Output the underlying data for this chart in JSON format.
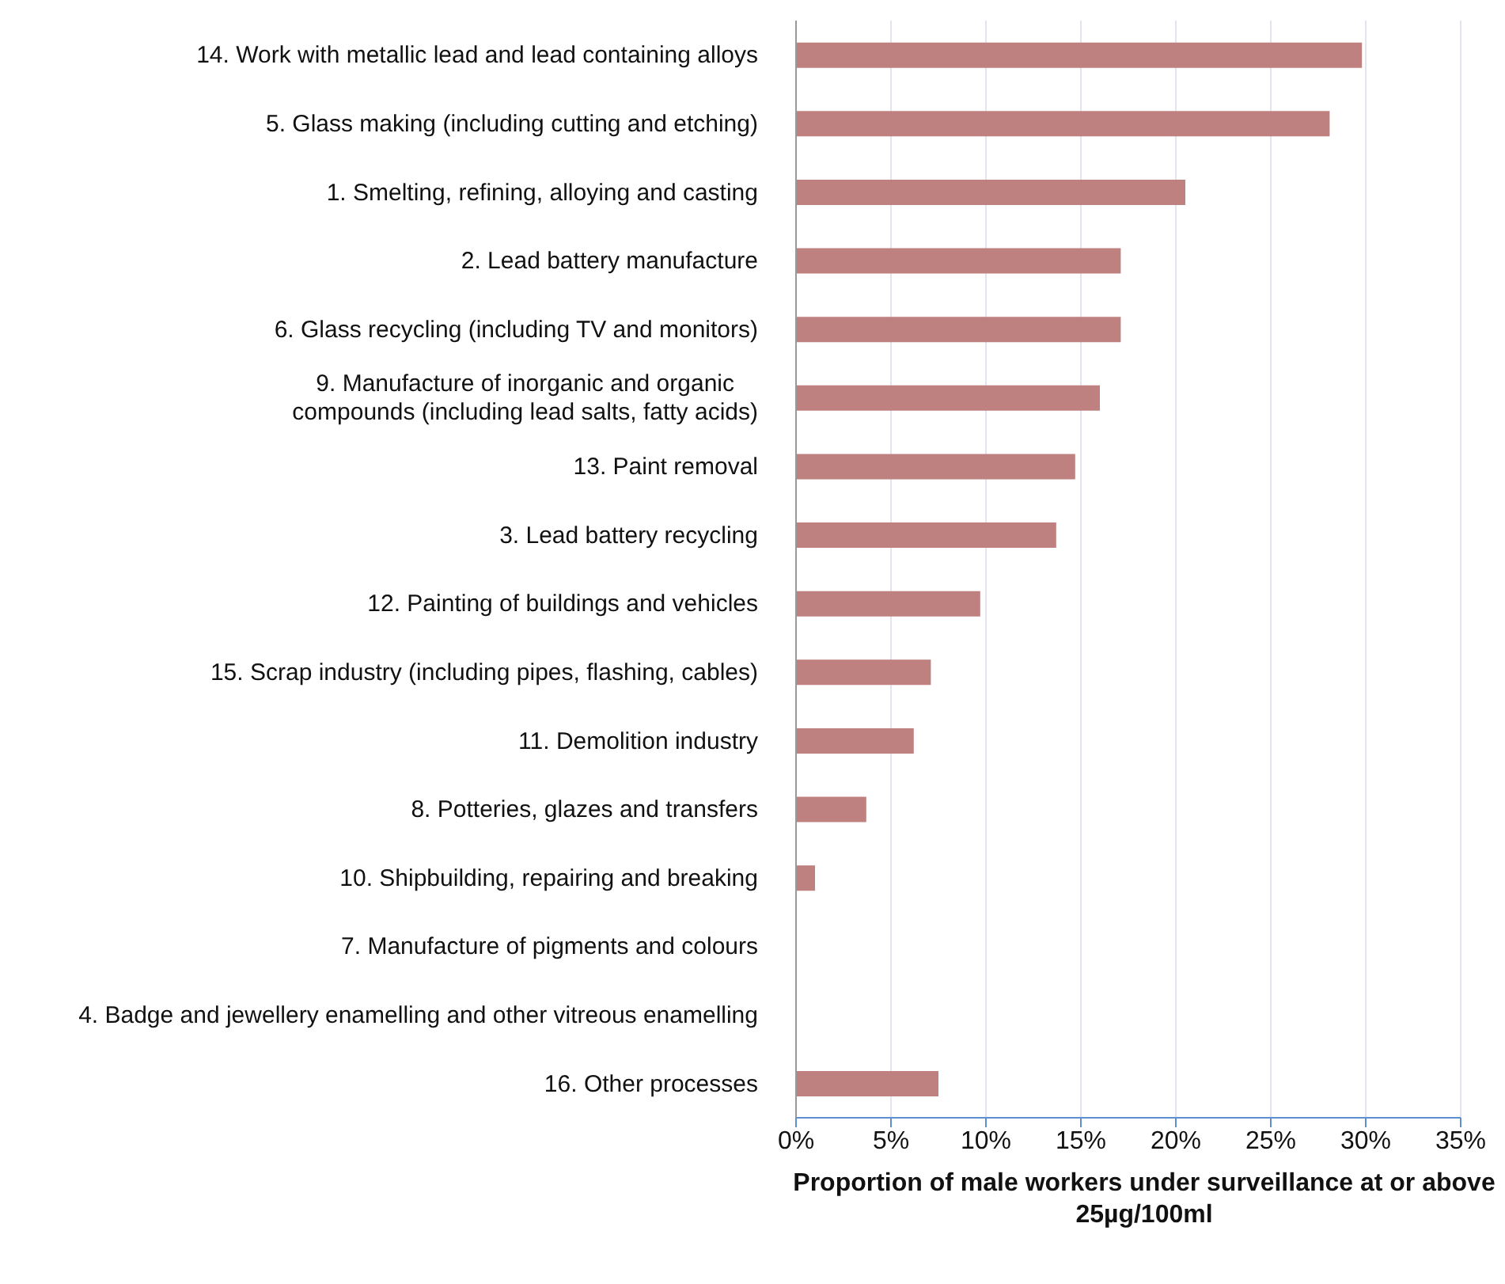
{
  "chart_data": {
    "type": "bar",
    "orientation": "horizontal",
    "xlabel": "Proportion of male workers under surveillance at or above 25µg/100ml",
    "categories": [
      "14. Work with metallic lead and lead containing alloys",
      "5. Glass making (including cutting and etching)",
      "1. Smelting, refining, alloying and casting",
      "2. Lead battery manufacture",
      "6. Glass recycling (including TV and monitors)",
      "9. Manufacture of inorganic and organic compounds (including lead salts, fatty acids)",
      "13. Paint removal",
      "3. Lead battery recycling",
      "12. Painting of buildings and vehicles",
      "15. Scrap industry (including pipes, flashing, cables)",
      "11. Demolition industry",
      "8. Potteries, glazes and transfers",
      "10. Shipbuilding, repairing and breaking",
      "7. Manufacture of pigments and colours",
      "4. Badge and jewellery enamelling and other vitreous enamelling",
      "16. Other processes"
    ],
    "values": [
      29.8,
      28.1,
      20.5,
      17.1,
      17.1,
      16.0,
      14.7,
      13.7,
      9.7,
      7.1,
      6.2,
      3.7,
      1.0,
      0,
      0,
      7.5
    ],
    "color": "#bf8080",
    "xlim": [
      0,
      35
    ],
    "xticks": [
      {
        "value": 0,
        "label": "0%"
      },
      {
        "value": 5,
        "label": "5%"
      },
      {
        "value": 10,
        "label": "10%"
      },
      {
        "value": 15,
        "label": "15%"
      },
      {
        "value": 20,
        "label": "20%"
      },
      {
        "value": 25,
        "label": "25%"
      },
      {
        "value": 30,
        "label": "30%"
      },
      {
        "value": 35,
        "label": "35%"
      }
    ],
    "grid": "x"
  }
}
